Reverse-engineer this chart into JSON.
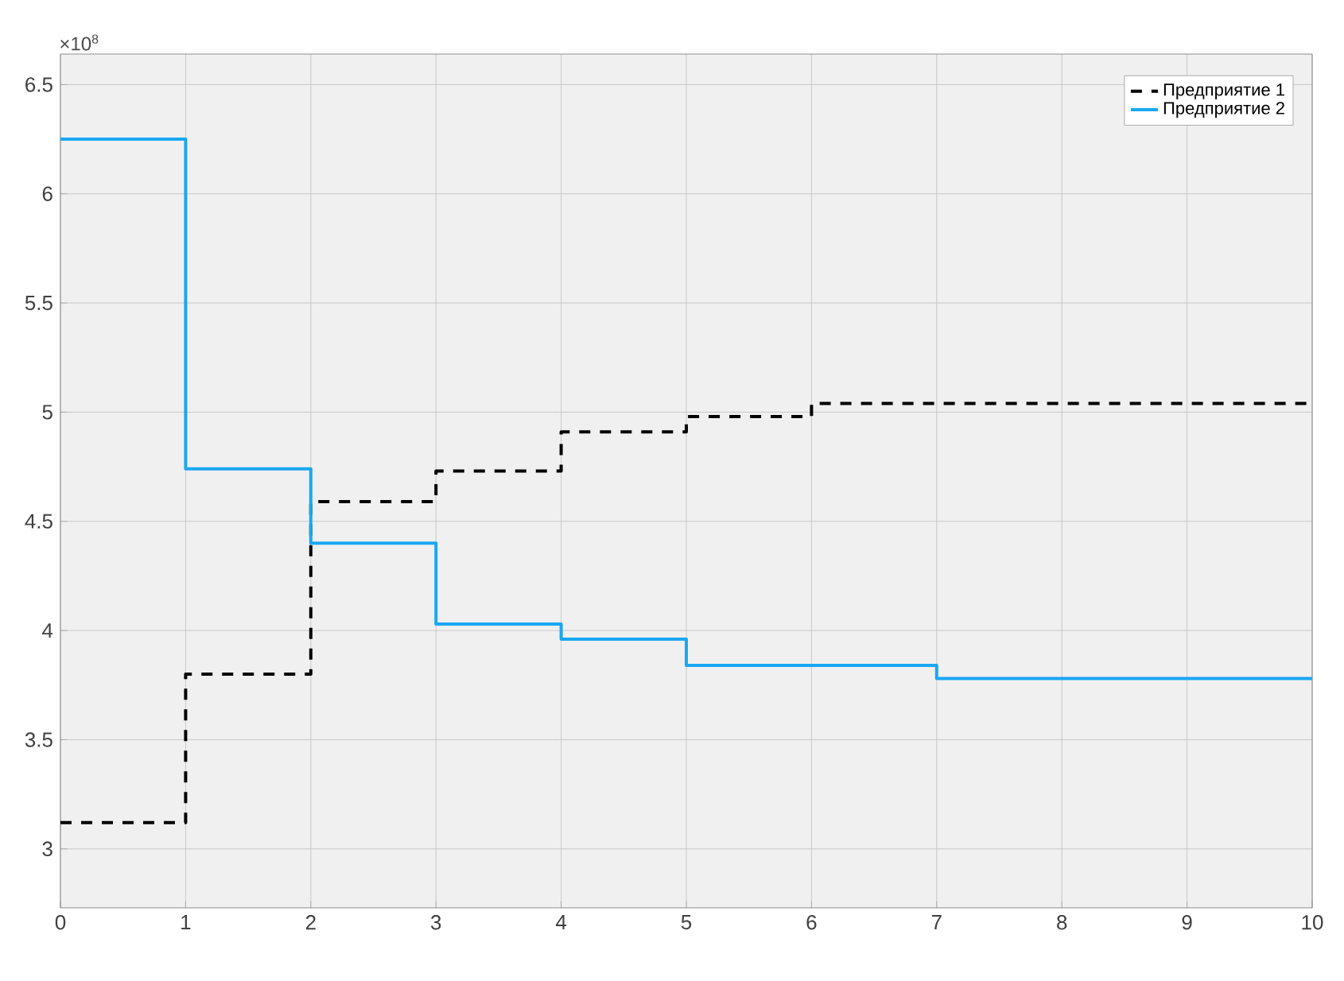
{
  "chart_data": {
    "type": "step",
    "x": [
      0,
      1,
      2,
      3,
      4,
      5,
      6,
      7,
      8,
      9,
      10
    ],
    "series": [
      {
        "name": "Предприятие 1",
        "color": "#000000",
        "line_style": "dashed",
        "values": [
          3.12,
          3.8,
          4.59,
          4.73,
          4.91,
          4.98,
          5.04,
          5.04,
          5.04,
          5.04,
          5.04
        ]
      },
      {
        "name": "Предприятие 2",
        "color": "#1aa7f2",
        "line_style": "solid",
        "values": [
          6.25,
          4.74,
          4.4,
          4.03,
          3.96,
          3.84,
          3.84,
          3.78,
          3.78,
          3.78,
          3.78
        ]
      }
    ],
    "xlim": [
      0,
      10
    ],
    "xticks": [
      0,
      1,
      2,
      3,
      4,
      5,
      6,
      7,
      8,
      9,
      10
    ],
    "ylim": [
      2.73,
      6.64
    ],
    "yticks": [
      3,
      3.5,
      4,
      4.5,
      5,
      5.5,
      6,
      6.5
    ],
    "annotations": [
      "×10$^{8}$"
    ],
    "grid": true,
    "legend": "top right",
    "marker": "none"
  }
}
